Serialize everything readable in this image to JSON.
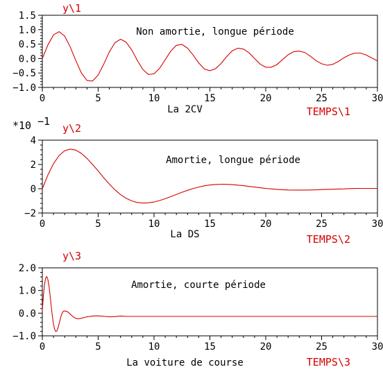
{
  "chart_data": [
    {
      "type": "line",
      "ylabel": "y\\1",
      "xlabel": "La 2CV",
      "time_label": "TEMPS\\1",
      "annotation": "Non amortie, longue période",
      "xlim": [
        0,
        30
      ],
      "ylim": [
        -1.0,
        1.5
      ],
      "xticks": [
        "0",
        "5",
        "10",
        "15",
        "20",
        "25",
        "30"
      ],
      "yticks": [
        "1.5",
        "1.0",
        "0.5",
        "0.0",
        "−0.5",
        "−1.0"
      ],
      "y_scale_label": "",
      "color": "#d40000",
      "series": [
        {
          "x": [
            0,
            0.5,
            1,
            1.5,
            2,
            2.5,
            3,
            3.5,
            4,
            4.5,
            5,
            5.5,
            6,
            6.5,
            7,
            7.5,
            8,
            8.5,
            9,
            9.5,
            10,
            10.5,
            11,
            11.5,
            12,
            12.5,
            13,
            13.5,
            14,
            14.5,
            15,
            15.5,
            16,
            16.5,
            17,
            17.5,
            18,
            18.5,
            19,
            19.5,
            20,
            20.5,
            21,
            21.5,
            22,
            22.5,
            23,
            23.5,
            24,
            24.5,
            25,
            25.5,
            26,
            26.5,
            27,
            27.5,
            28,
            28.5,
            29,
            29.5,
            30
          ],
          "values": [
            0,
            0.47,
            0.82,
            0.93,
            0.78,
            0.4,
            -0.07,
            -0.5,
            -0.76,
            -0.78,
            -0.57,
            -0.19,
            0.23,
            0.55,
            0.67,
            0.57,
            0.3,
            -0.06,
            -0.38,
            -0.55,
            -0.53,
            -0.34,
            -0.04,
            0.26,
            0.46,
            0.49,
            0.36,
            0.12,
            -0.15,
            -0.36,
            -0.42,
            -0.35,
            -0.17,
            0.07,
            0.27,
            0.36,
            0.33,
            0.2,
            0.0,
            -0.19,
            -0.3,
            -0.3,
            -0.21,
            -0.04,
            0.13,
            0.24,
            0.26,
            0.21,
            0.08,
            -0.07,
            -0.18,
            -0.23,
            -0.2,
            -0.1,
            0.03,
            0.13,
            0.19,
            0.19,
            0.12,
            0.02,
            -0.08
          ]
        }
      ]
    },
    {
      "type": "line",
      "ylabel": "y\\2",
      "xlabel": "La DS",
      "time_label": "TEMPS\\2",
      "annotation": "Amortie, longue période",
      "xlim": [
        0,
        30
      ],
      "ylim": [
        -2,
        4
      ],
      "xticks": [
        "0",
        "5",
        "10",
        "15",
        "20",
        "25",
        "30"
      ],
      "yticks": [
        "4",
        "2",
        "0",
        "−2"
      ],
      "y_scale_label": "*10",
      "y_scale_exp": "−1",
      "color": "#d40000",
      "series": [
        {
          "x": [
            0,
            0.5,
            1,
            1.5,
            2,
            2.5,
            3,
            3.5,
            4,
            4.5,
            5,
            5.5,
            6,
            6.5,
            7,
            7.5,
            8,
            8.5,
            9,
            9.5,
            10,
            10.5,
            11,
            11.5,
            12,
            12.5,
            13,
            13.5,
            14,
            14.5,
            15,
            15.5,
            16,
            16.5,
            17,
            17.5,
            18,
            18.5,
            19,
            19.5,
            20,
            20.5,
            21,
            21.5,
            22,
            22.5,
            23,
            23.5,
            24,
            24.5,
            25,
            25.5,
            26,
            26.5,
            27,
            27.5,
            28,
            28.5,
            29,
            29.5,
            30
          ],
          "values": [
            0,
            1.13,
            2.06,
            2.73,
            3.13,
            3.27,
            3.18,
            2.91,
            2.5,
            2.0,
            1.46,
            0.9,
            0.38,
            -0.09,
            -0.48,
            -0.79,
            -1.0,
            -1.13,
            -1.18,
            -1.16,
            -1.09,
            -0.97,
            -0.82,
            -0.65,
            -0.47,
            -0.29,
            -0.13,
            0.02,
            0.14,
            0.24,
            0.31,
            0.35,
            0.37,
            0.36,
            0.34,
            0.3,
            0.25,
            0.19,
            0.14,
            0.08,
            0.03,
            -0.01,
            -0.05,
            -0.08,
            -0.1,
            -0.11,
            -0.11,
            -0.11,
            -0.1,
            -0.09,
            -0.07,
            -0.05,
            -0.04,
            -0.02,
            -0.01,
            0.01,
            0.02,
            0.03,
            0.03,
            0.03,
            0.03
          ]
        }
      ]
    },
    {
      "type": "line",
      "ylabel": "y\\3",
      "xlabel": "La voiture de course",
      "time_label": "TEMPS\\3",
      "annotation": "Amortie, courte période",
      "xlim": [
        0,
        30
      ],
      "ylim": [
        -1.0,
        2.5
      ],
      "xticks": [
        "0",
        "5",
        "10",
        "15",
        "20",
        "25",
        "30"
      ],
      "yticks": [
        "2.0",
        "1.0",
        "0.0",
        "−1.0"
      ],
      "y_scale_label": "",
      "color": "#d40000",
      "series": [
        {
          "x": [
            0,
            0.1,
            0.2,
            0.3,
            0.4,
            0.5,
            0.6,
            0.7,
            0.8,
            0.9,
            1.0,
            1.1,
            1.2,
            1.3,
            1.4,
            1.5,
            1.6,
            1.7,
            1.8,
            1.9,
            2.0,
            2.2,
            2.4,
            2.6,
            2.8,
            3.0,
            3.2,
            3.4,
            3.6,
            3.8,
            4.0,
            4.4,
            4.8,
            5.2,
            5.6,
            6.0,
            6.5,
            7.0,
            7.5,
            8.0,
            9,
            10,
            12,
            15,
            20,
            25,
            30
          ],
          "values": [
            0.3,
            1.1,
            1.65,
            1.98,
            2.05,
            1.9,
            1.55,
            1.05,
            0.5,
            0.0,
            -0.4,
            -0.66,
            -0.78,
            -0.75,
            -0.6,
            -0.38,
            -0.14,
            0.06,
            0.2,
            0.27,
            0.28,
            0.26,
            0.17,
            0.06,
            -0.04,
            -0.1,
            -0.12,
            -0.11,
            -0.08,
            -0.05,
            -0.02,
            0.01,
            0.03,
            0.02,
            0.0,
            -0.02,
            -0.01,
            0.02,
            0.0,
            0.0,
            0.0,
            0.0,
            0.0,
            0.0,
            0.0,
            0.0,
            0.0
          ]
        }
      ]
    }
  ]
}
